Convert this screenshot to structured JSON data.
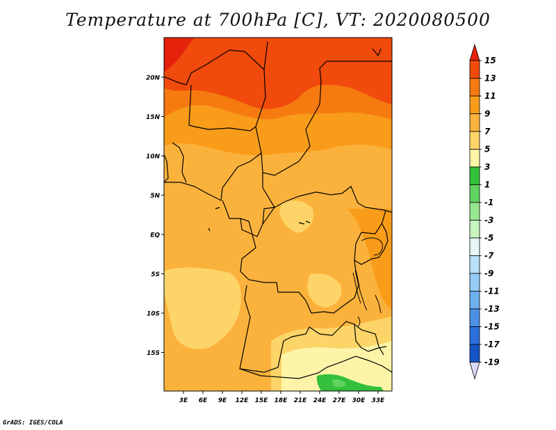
{
  "title": "Temperature at 700hPa [C], VT: 2020080500",
  "footer": "GrADS: IGES/COLA",
  "map": {
    "lat_ticks": [
      {
        "value": 20,
        "label": "20N"
      },
      {
        "value": 15,
        "label": "15N"
      },
      {
        "value": 10,
        "label": "10N"
      },
      {
        "value": 5,
        "label": "5N"
      },
      {
        "value": 0,
        "label": "EQ"
      },
      {
        "value": -5,
        "label": "5S"
      },
      {
        "value": -10,
        "label": "10S"
      },
      {
        "value": -15,
        "label": "15S"
      }
    ],
    "lon_ticks": [
      {
        "value": 3,
        "label": "3E"
      },
      {
        "value": 6,
        "label": "6E"
      },
      {
        "value": 9,
        "label": "9E"
      },
      {
        "value": 12,
        "label": "12E"
      },
      {
        "value": 15,
        "label": "15E"
      },
      {
        "value": 18,
        "label": "18E"
      },
      {
        "value": 21,
        "label": "21E"
      },
      {
        "value": 24,
        "label": "24E"
      },
      {
        "value": 27,
        "label": "27E"
      },
      {
        "value": 30,
        "label": "30E"
      },
      {
        "value": 33,
        "label": "33E"
      }
    ]
  },
  "colorbar": {
    "levels": [
      {
        "label": "15",
        "color": "#e6220c"
      },
      {
        "label": "13",
        "color": "#f04a0c"
      },
      {
        "label": "11",
        "color": "#f67a10"
      },
      {
        "label": "9",
        "color": "#f99c1a"
      },
      {
        "label": "7",
        "color": "#fbb23c"
      },
      {
        "label": "5",
        "color": "#fdd468"
      },
      {
        "label": "3",
        "color": "#fdf4a8"
      },
      {
        "label": "1",
        "color": "#34c03a"
      },
      {
        "label": "-1",
        "color": "#5fd35f"
      },
      {
        "label": "-3",
        "color": "#98e690"
      },
      {
        "label": "-5",
        "color": "#c8f4c0"
      },
      {
        "label": "-7",
        "color": "#e6f6f6"
      },
      {
        "label": "-9",
        "color": "#b8e2f8"
      },
      {
        "label": "-11",
        "color": "#94ccf6"
      },
      {
        "label": "-13",
        "color": "#6cb0ee"
      },
      {
        "label": "-15",
        "color": "#4c90e6"
      },
      {
        "label": "-17",
        "color": "#2c70dc"
      },
      {
        "label": "-19",
        "color": "#1454c6"
      }
    ],
    "extra_colors": [
      "#0a34ac",
      "#081a7a",
      "#d8d8f6"
    ]
  }
}
